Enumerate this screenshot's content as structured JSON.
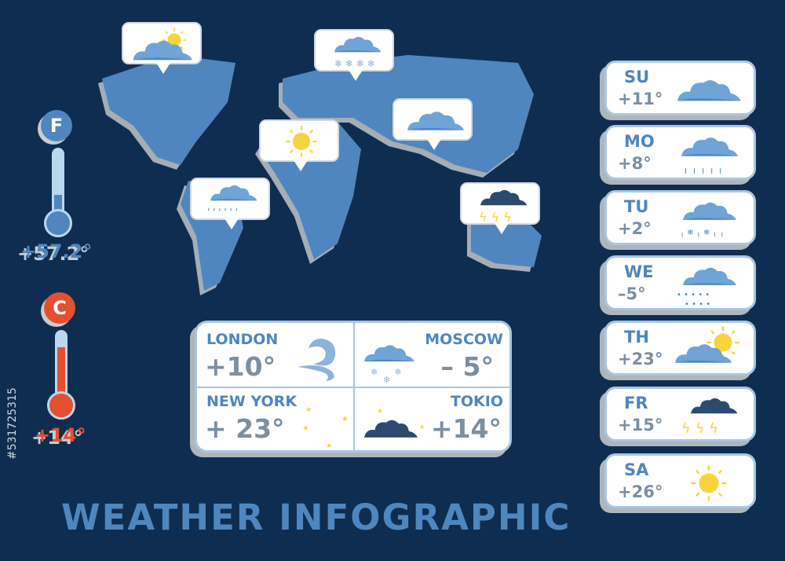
{
  "title": "WEATHER INFOGRAPHIC",
  "stock_id": "#531725315",
  "colors": {
    "background": "#0f2d50",
    "accent": "#4f86bf",
    "celsius": "#e4502f",
    "sun": "#f8d43a"
  },
  "thermometers": [
    {
      "unit": "°F",
      "unit_label": "F",
      "value": "+57.2°",
      "color": "#4f86bf",
      "fill_fraction": 0.35
    },
    {
      "unit": "°C",
      "unit_label": "C",
      "value": "+14°",
      "color": "#e4502f",
      "fill_fraction": 0.75
    }
  ],
  "map_bubbles": [
    "sun-cloud-icon",
    "snow-cloud-icon",
    "cloud-icon",
    "sun-icon",
    "rain-cloud-icon",
    "thunder-cloud-icon"
  ],
  "cities": [
    {
      "name": "LONDON",
      "temp": "+10°",
      "icon": "wind-icon"
    },
    {
      "name": "MOSCOW",
      "temp": "– 5°",
      "icon": "snow-cloud-icon"
    },
    {
      "name": "NEW YORK",
      "temp": "+ 23°",
      "icon": "moon-stars-icon"
    },
    {
      "name": "TOKIO",
      "temp": "+14°",
      "icon": "night-cloud-icon"
    }
  ],
  "days": [
    {
      "day": "SU",
      "temp": "+11°",
      "icon": "cloud-icon"
    },
    {
      "day": "MO",
      "temp": "+8°",
      "icon": "rain-cloud-icon"
    },
    {
      "day": "TU",
      "temp": "+2°",
      "icon": "rain-snow-cloud-icon"
    },
    {
      "day": "WE",
      "temp": "–5°",
      "icon": "hail-cloud-icon"
    },
    {
      "day": "TH",
      "temp": "+23°",
      "icon": "sun-cloud-icon"
    },
    {
      "day": "FR",
      "temp": "+15°",
      "icon": "thunder-cloud-icon"
    },
    {
      "day": "SA",
      "temp": "+26°",
      "icon": "sun-icon"
    }
  ]
}
